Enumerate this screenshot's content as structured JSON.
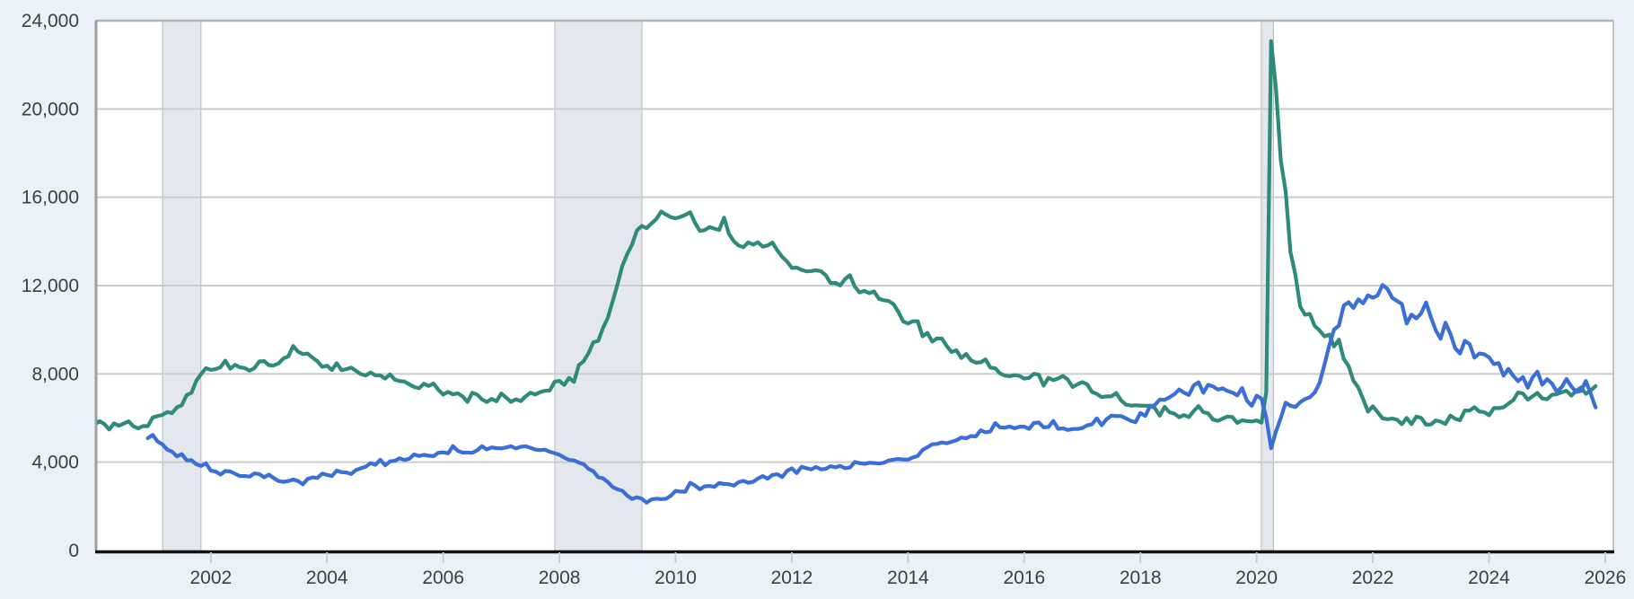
{
  "chart_data": {
    "type": "line",
    "title": "",
    "x_axis": {
      "tick_years": [
        2002,
        2004,
        2006,
        2008,
        2010,
        2012,
        2014,
        2016,
        2018,
        2020,
        2022,
        2024,
        2026
      ],
      "tick_labels": [
        "2002",
        "2004",
        "2006",
        "2008",
        "2010",
        "2012",
        "2014",
        "2016",
        "2018",
        "2020",
        "2022",
        "2024",
        "2026"
      ],
      "range": [
        2000.04,
        2026.14
      ],
      "grid": false
    },
    "y_axis": {
      "tick_values": [
        0,
        4000,
        8000,
        12000,
        16000,
        20000,
        24000
      ],
      "tick_labels": [
        "0",
        "4,000",
        "8,000",
        "12,000",
        "16,000",
        "20,000",
        "24,000"
      ],
      "range": [
        0,
        24000
      ],
      "grid": true
    },
    "recession_bands": [
      {
        "start": 2001.17,
        "end": 2001.83
      },
      {
        "start": 2007.92,
        "end": 2009.42
      },
      {
        "start": 2020.08,
        "end": 2020.29
      }
    ],
    "series": [
      {
        "id": "green-line",
        "color": "#2e8b7a",
        "frequency": "monthly",
        "start_year": 2000,
        "start_month": 1,
        "values": [
          5708,
          5858,
          5733,
          5481,
          5758,
          5651,
          5747,
          5853,
          5625,
          5534,
          5639,
          5634,
          6023,
          6089,
          6141,
          6271,
          6226,
          6484,
          6583,
          7042,
          7142,
          7694,
          8003,
          8258,
          8182,
          8215,
          8304,
          8599,
          8234,
          8413,
          8299,
          8264,
          8145,
          8260,
          8561,
          8578,
          8394,
          8378,
          8478,
          8699,
          8786,
          9266,
          9011,
          8896,
          8921,
          8732,
          8576,
          8317,
          8370,
          8167,
          8491,
          8170,
          8212,
          8286,
          8136,
          7990,
          7927,
          8061,
          7932,
          7934,
          7784,
          7980,
          7737,
          7672,
          7651,
          7524,
          7406,
          7345,
          7553,
          7453,
          7566,
          7279,
          7064,
          7184,
          7072,
          7120,
          6980,
          6729,
          7149,
          7067,
          6847,
          6727,
          6872,
          6762,
          7116,
          6927,
          6731,
          6850,
          6766,
          6979,
          7149,
          7067,
          7170,
          7237,
          7240,
          7645,
          7685,
          7497,
          7822,
          7637,
          8395,
          8575,
          8937,
          9438,
          9494,
          10074,
          10538,
          11286,
          12058,
          12898,
          13426,
          13853,
          14499,
          14707,
          14601,
          14814,
          15009,
          15352,
          15219,
          15098,
          15046,
          15113,
          15202,
          15325,
          14849,
          14474,
          14512,
          14648,
          14579,
          14516,
          15081,
          14348,
          14013,
          13820,
          13737,
          13957,
          13855,
          13962,
          13763,
          13818,
          13948,
          13594,
          13302,
          13093,
          12797,
          12813,
          12713,
          12646,
          12660,
          12692,
          12656,
          12471,
          12115,
          12124,
          12005,
          12298,
          12471,
          11950,
          11689,
          11760,
          11654,
          11735,
          11398,
          11336,
          11302,
          11161,
          10814,
          10376,
          10280,
          10387,
          10384,
          9702,
          9859,
          9460,
          9608,
          9599,
          9262,
          8990,
          9071,
          8717,
          8903,
          8610,
          8504,
          8526,
          8655,
          8287,
          8253,
          8023,
          7923,
          7897,
          7944,
          7907,
          7784,
          7820,
          8007,
          7963,
          7470,
          7821,
          7712,
          7795,
          7907,
          7740,
          7409,
          7529,
          7628,
          7528,
          7178,
          7094,
          6946,
          6983,
          6981,
          7136,
          6801,
          6606,
          6564,
          6576,
          6566,
          6557,
          6558,
          6447,
          6107,
          6509,
          6265,
          6199,
          6035,
          6135,
          6043,
          6319,
          6545,
          6263,
          6212,
          5930,
          5873,
          5977,
          6068,
          6043,
          5780,
          5899,
          5860,
          5844,
          5892,
          5787,
          7185,
          23078,
          20935,
          17663,
          16273,
          13504,
          12504,
          11049,
          10684,
          10714,
          10168,
          9972,
          9698,
          9780,
          9243,
          9551,
          8678,
          8360,
          7689,
          7386,
          6860,
          6290,
          6531,
          6261,
          5988,
          5949,
          5977,
          5928,
          5723,
          6004,
          5723,
          6066,
          6006,
          5697,
          5711,
          5893,
          5837,
          5731,
          6115,
          5972,
          5897,
          6340,
          6337,
          6494,
          6292,
          6268,
          6125,
          6452,
          6448,
          6486,
          6649,
          6811,
          7160,
          7112,
          6830,
          6984,
          7140,
          6886,
          6849,
          7052,
          7083,
          7165,
          7237,
          7015,
          7240,
          7384,
          7100,
          7250,
          7450
        ]
      },
      {
        "id": "blue-line",
        "color": "#3a6fd8",
        "frequency": "monthly",
        "start_year": 2000,
        "start_month": 12,
        "values": [
          5088,
          5234,
          4939,
          4810,
          4570,
          4474,
          4265,
          4364,
          4085,
          4089,
          3906,
          3832,
          3946,
          3617,
          3577,
          3442,
          3606,
          3579,
          3477,
          3371,
          3372,
          3348,
          3495,
          3463,
          3316,
          3437,
          3283,
          3143,
          3106,
          3143,
          3217,
          3147,
          3001,
          3244,
          3311,
          3287,
          3481,
          3427,
          3374,
          3620,
          3547,
          3536,
          3465,
          3646,
          3727,
          3799,
          3958,
          3880,
          4109,
          3860,
          4041,
          4062,
          4178,
          4101,
          4157,
          4353,
          4280,
          4333,
          4292,
          4277,
          4430,
          4445,
          4400,
          4731,
          4516,
          4433,
          4434,
          4426,
          4537,
          4722,
          4578,
          4669,
          4639,
          4627,
          4671,
          4722,
          4621,
          4700,
          4724,
          4655,
          4572,
          4549,
          4568,
          4476,
          4408,
          4337,
          4207,
          4106,
          4081,
          3982,
          3909,
          3698,
          3593,
          3319,
          3272,
          3102,
          2877,
          2770,
          2706,
          2485,
          2333,
          2413,
          2342,
          2169,
          2316,
          2347,
          2327,
          2342,
          2478,
          2700,
          2668,
          2661,
          3069,
          2945,
          2775,
          2906,
          2923,
          2883,
          3058,
          3014,
          3006,
          2935,
          3096,
          3157,
          3071,
          3107,
          3257,
          3374,
          3253,
          3427,
          3453,
          3327,
          3603,
          3724,
          3507,
          3791,
          3731,
          3672,
          3785,
          3676,
          3697,
          3820,
          3767,
          3837,
          3725,
          3759,
          4009,
          3956,
          3922,
          3976,
          3962,
          3936,
          3976,
          4075,
          4117,
          4145,
          4125,
          4113,
          4216,
          4283,
          4556,
          4676,
          4812,
          4830,
          4894,
          4855,
          4927,
          4990,
          5118,
          5081,
          5187,
          5166,
          5448,
          5352,
          5391,
          5771,
          5577,
          5561,
          5617,
          5535,
          5607,
          5608,
          5508,
          5775,
          5801,
          5582,
          5594,
          5869,
          5513,
          5536,
          5458,
          5505,
          5505,
          5547,
          5667,
          5721,
          5986,
          5676,
          5946,
          6109,
          6090,
          6090,
          5986,
          5874,
          5812,
          6228,
          6095,
          6540,
          6595,
          6840,
          6824,
          6939,
          7077,
          7293,
          7150,
          7046,
          7479,
          7625,
          7142,
          7505,
          7434,
          7288,
          7348,
          7223,
          7154,
          7027,
          7361,
          6787,
          6552,
          7012,
          6877,
          6011,
          4631,
          5387,
          6003,
          6697,
          6557,
          6502,
          6716,
          6861,
          6938,
          7158,
          7589,
          8420,
          9292,
          10007,
          10185,
          11098,
          11248,
          10986,
          11377,
          11193,
          11558,
          11448,
          11557,
          12027,
          11855,
          11445,
          11303,
          11170,
          10280,
          10687,
          10512,
          10746,
          11234,
          10563,
          9974,
          9590,
          10320,
          9824,
          9165,
          8920,
          9497,
          9350,
          8733,
          8925,
          8889,
          8748,
          8445,
          8488,
          7919,
          8230,
          7910,
          7673,
          7861,
          7372,
          7839,
          8098,
          7508,
          7762,
          7568,
          7192,
          7395,
          7769,
          7437,
          7181,
          7227,
          7680,
          7100,
          6480
        ]
      }
    ],
    "legend": {
      "visible": false
    },
    "styles": {
      "page_background": "#eaf1f9",
      "plot_background": "#ffffff",
      "gridline_color": "#cccccc",
      "band_fill": "#e4e8ee",
      "band_edge": "#b9b9b9",
      "frame_color": "#b3b3b3",
      "left_frame_color": "#9e9e9e",
      "baseline_color": "#111111",
      "tick_color": "#c3d0dc",
      "axis_text_color": "#3c4043"
    }
  }
}
